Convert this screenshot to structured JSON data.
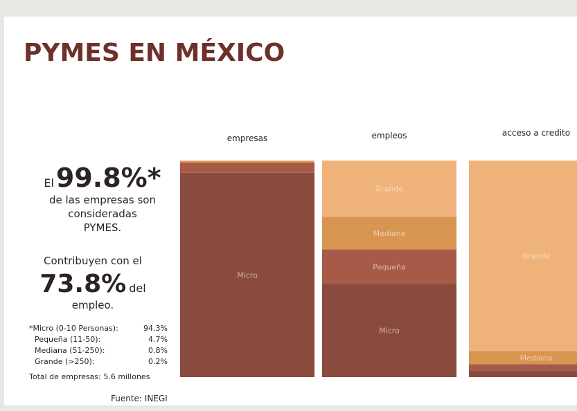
{
  "title": "PYMES EN MÉXICO",
  "headline1": {
    "prefix": "El",
    "value": "99.8%*",
    "lines": [
      "de las empresas son",
      "consideradas",
      "PYMES."
    ]
  },
  "headline2": {
    "line": "Contribuyen con el",
    "value": "73.8%",
    "suffix": "del",
    "line2": "empleo."
  },
  "breakdown": [
    [
      "*Micro (0-10 Personas):",
      "94.3%"
    ],
    [
      "Pequeña (11-50):",
      "4.7%"
    ],
    [
      "Mediana (51-250):",
      "0.8%"
    ],
    [
      "Grande (>250):",
      "0.2%"
    ]
  ],
  "total": "Total de empresas: 5.6 millones",
  "source": "Fuente: INEGI",
  "chart_data": {
    "type": "stacked_bar",
    "categories": [
      "empresas",
      "empleos",
      "acceso a credito"
    ],
    "ylim": [
      0,
      100
    ],
    "series": [
      {
        "name": "Micro",
        "color": "#8a4b3e",
        "values": [
          94.3,
          43,
          3
        ]
      },
      {
        "name": "Pequeña",
        "color": "#a65a47",
        "values": [
          4.7,
          16,
          3
        ]
      },
      {
        "name": "Mediana",
        "color": "#d89550",
        "values": [
          0.8,
          15,
          6
        ]
      },
      {
        "name": "Grande",
        "color": "#efb27a",
        "values": [
          0.2,
          26,
          88
        ]
      }
    ]
  }
}
